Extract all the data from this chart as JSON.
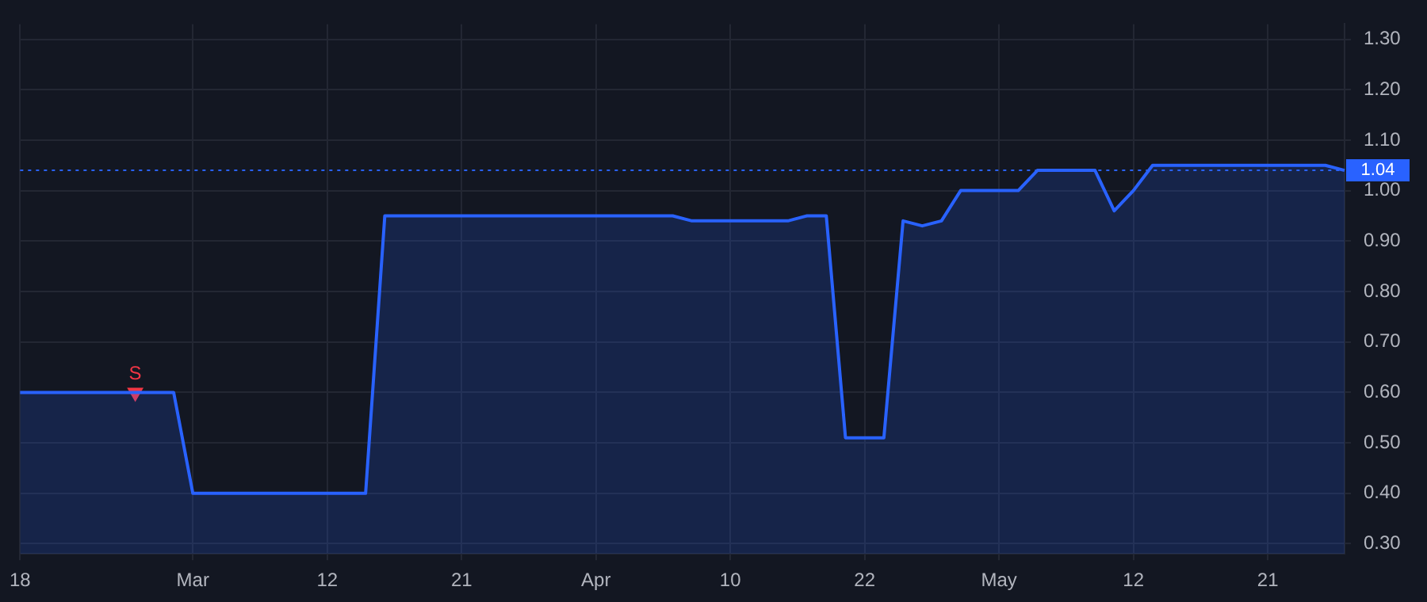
{
  "chart_data": {
    "type": "area",
    "categories": [
      "18",
      null,
      null,
      null,
      null,
      null,
      null,
      null,
      null,
      "Mar",
      null,
      null,
      null,
      null,
      null,
      null,
      "12",
      null,
      null,
      null,
      null,
      null,
      null,
      "21",
      null,
      null,
      null,
      null,
      null,
      null,
      "Apr",
      null,
      null,
      null,
      null,
      null,
      null,
      "10",
      null,
      null,
      null,
      null,
      null,
      null,
      "22",
      null,
      null,
      null,
      null,
      null,
      null,
      "May",
      null,
      null,
      null,
      null,
      null,
      null,
      "12",
      null,
      null,
      null,
      null,
      null,
      null,
      "21",
      null,
      null,
      null,
      null
    ],
    "series": [
      {
        "color": "#2962ff",
        "values": [
          0.6,
          0.6,
          0.6,
          0.6,
          0.6,
          0.6,
          0.6,
          0.6,
          0.6,
          0.4,
          0.4,
          0.4,
          0.4,
          0.4,
          0.4,
          0.4,
          0.4,
          0.4,
          0.4,
          0.95,
          0.95,
          0.95,
          0.95,
          0.95,
          0.95,
          0.95,
          0.95,
          0.95,
          0.95,
          0.95,
          0.95,
          0.95,
          0.95,
          0.95,
          0.95,
          0.94,
          0.94,
          0.94,
          0.94,
          0.94,
          0.94,
          0.95,
          0.95,
          0.51,
          0.51,
          0.51,
          0.94,
          0.93,
          0.94,
          1.0,
          1.0,
          1.0,
          1.0,
          1.04,
          1.04,
          1.04,
          1.04,
          0.96,
          1.0,
          1.05,
          1.05,
          1.05,
          1.05,
          1.05,
          1.05,
          1.05,
          1.05,
          1.05,
          1.05,
          1.04
        ]
      },
      {
        "type": "scatter",
        "name": "S",
        "color": "#f23645",
        "marker": "triangle",
        "values": [
          null,
          null,
          null,
          null,
          null,
          null,
          0.6,
          null,
          null,
          null,
          null,
          null,
          null,
          null,
          null,
          null,
          null,
          null,
          null,
          null,
          null,
          null,
          null,
          null,
          null,
          null,
          null,
          null,
          null,
          null,
          null,
          null,
          null,
          null,
          null,
          null,
          null,
          null,
          null,
          null,
          null,
          null,
          null,
          null,
          null,
          null,
          null,
          null,
          null,
          null,
          null,
          null,
          null,
          null,
          null,
          null,
          null,
          null,
          null,
          null,
          null,
          null,
          null,
          null,
          null,
          null,
          null,
          null,
          null,
          null
        ]
      }
    ],
    "ylim": [
      0.28,
      1.33
    ],
    "yticks": [
      {
        "value": 0.3,
        "label": "0.30"
      },
      {
        "value": 0.4,
        "label": "0.40"
      },
      {
        "value": 0.5,
        "label": "0.50"
      },
      {
        "value": 0.6,
        "label": "0.60"
      },
      {
        "value": 0.7,
        "label": "0.70"
      },
      {
        "value": 0.8,
        "label": "0.80"
      },
      {
        "value": 0.9,
        "label": "0.90"
      },
      {
        "value": 1.0,
        "label": "1.00"
      },
      {
        "value": 1.1,
        "label": "1.10"
      },
      {
        "value": 1.2,
        "label": "1.20"
      },
      {
        "value": 1.3,
        "label": "1.30"
      }
    ],
    "ref_lines": [
      {
        "axis": "y",
        "value": 1.04,
        "label": "1.04",
        "color": "#2962ff",
        "line_style": "dotted"
      }
    ],
    "grid": true,
    "legend": false,
    "marker": "none",
    "line_style": "solid"
  }
}
